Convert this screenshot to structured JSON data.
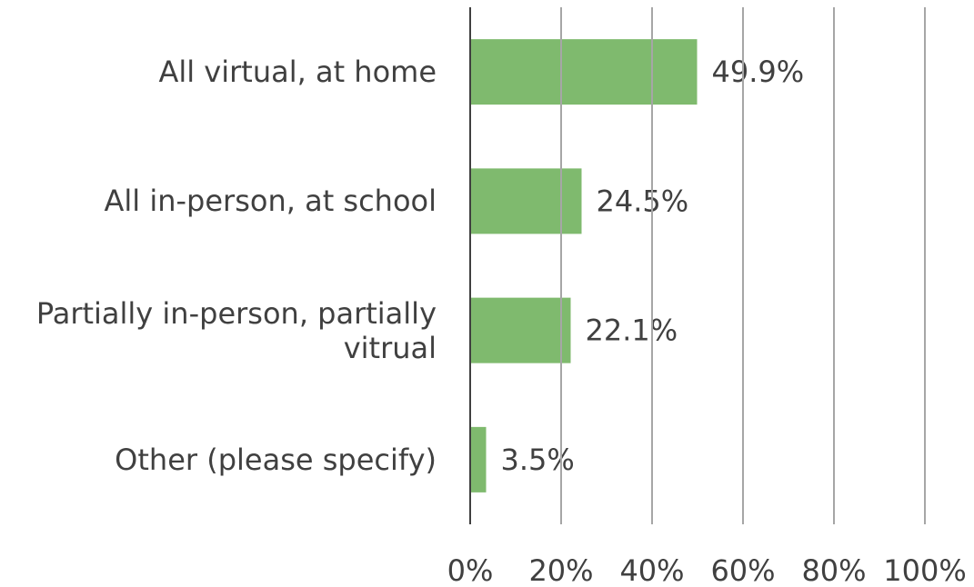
{
  "chart_data": {
    "type": "bar",
    "orientation": "horizontal",
    "categories": [
      "All virtual, at home",
      "All in-person, at school",
      "Partially in-person, partially vitrual",
      "Other (please specify)"
    ],
    "values": [
      49.9,
      24.5,
      22.1,
      3.5
    ],
    "value_labels": [
      "49.9%",
      "24.5%",
      "22.1%",
      "3.5%"
    ],
    "color": "#7fba6e",
    "xlim": [
      0,
      100
    ],
    "xticks": [
      {
        "value": 0,
        "label": "0%"
      },
      {
        "value": 20,
        "label": "20%"
      },
      {
        "value": 40,
        "label": "40%"
      },
      {
        "value": 60,
        "label": "60%"
      },
      {
        "value": 80,
        "label": "80%"
      },
      {
        "value": 100,
        "label": "100%"
      }
    ],
    "grid": true
  }
}
